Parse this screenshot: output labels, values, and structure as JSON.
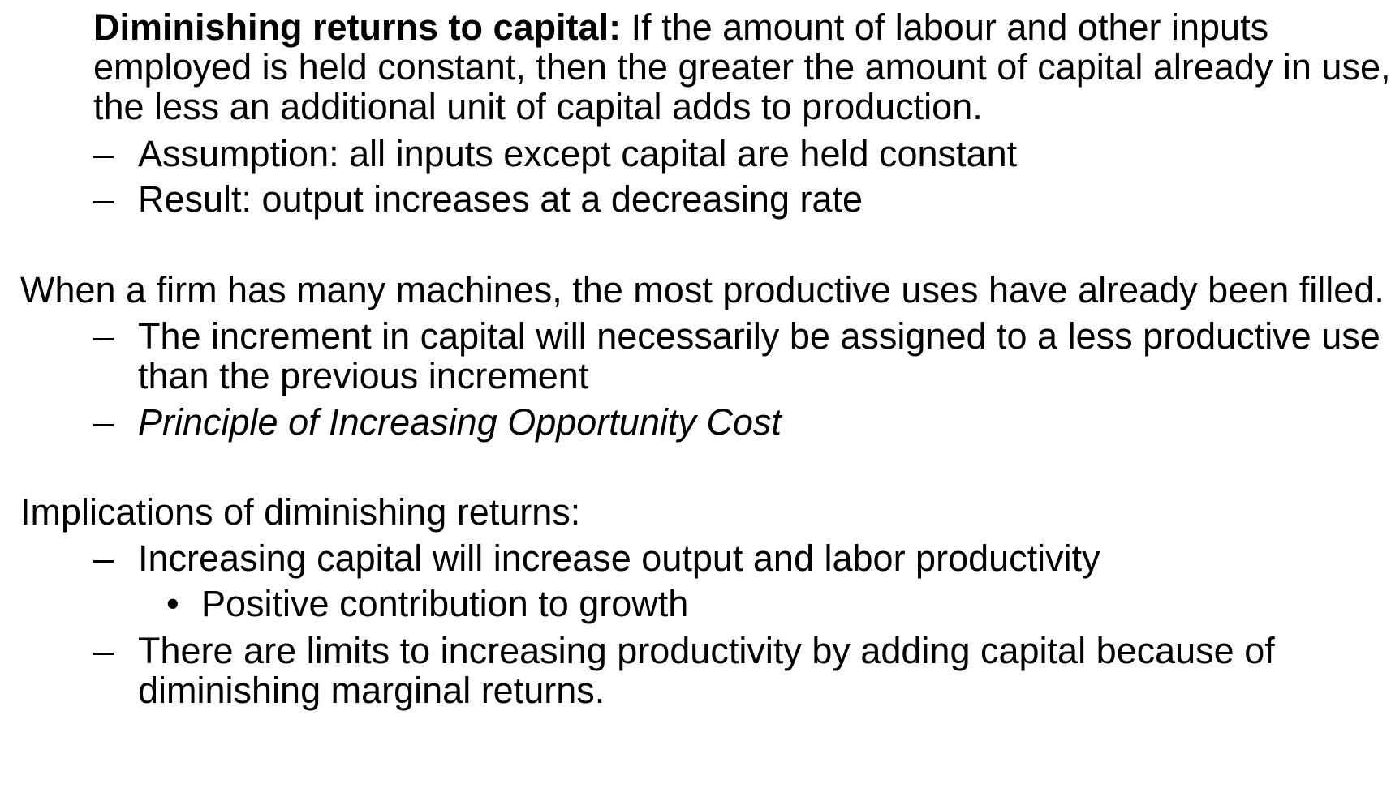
{
  "definition": {
    "term": "Diminishing returns to capital:",
    "line1_rest": " If the amount of labour and other inputs",
    "line2": "employed is held constant, then the greater the amount of capital already in use,",
    "line3": "the less an additional unit of capital adds to production."
  },
  "definition_points": [
    {
      "marker": "–",
      "text": "Assumption:  all inputs except capital are held constant"
    },
    {
      "marker": "–",
      "text": "Result:  output increases at a decreasing rate"
    }
  ],
  "machines": {
    "heading": "When a firm has many machines, the most productive uses have already been filled.",
    "points": [
      {
        "marker": "–",
        "line1": "The increment in capital will necessarily be assigned to a less productive use",
        "line2": "than the previous increment"
      },
      {
        "marker": "–",
        "text": "Principle of Increasing Opportunity Cost"
      }
    ]
  },
  "implications": {
    "heading": "Implications of diminishing returns:",
    "point1": {
      "marker": "–",
      "text": "Increasing capital will increase output and labor productivity"
    },
    "subpoint": {
      "marker": "•",
      "text": "Positive contribution to growth"
    },
    "point2": {
      "marker": "–",
      "line1": "There are limits to increasing productivity by adding capital because of",
      "line2": "diminishing marginal returns."
    }
  }
}
